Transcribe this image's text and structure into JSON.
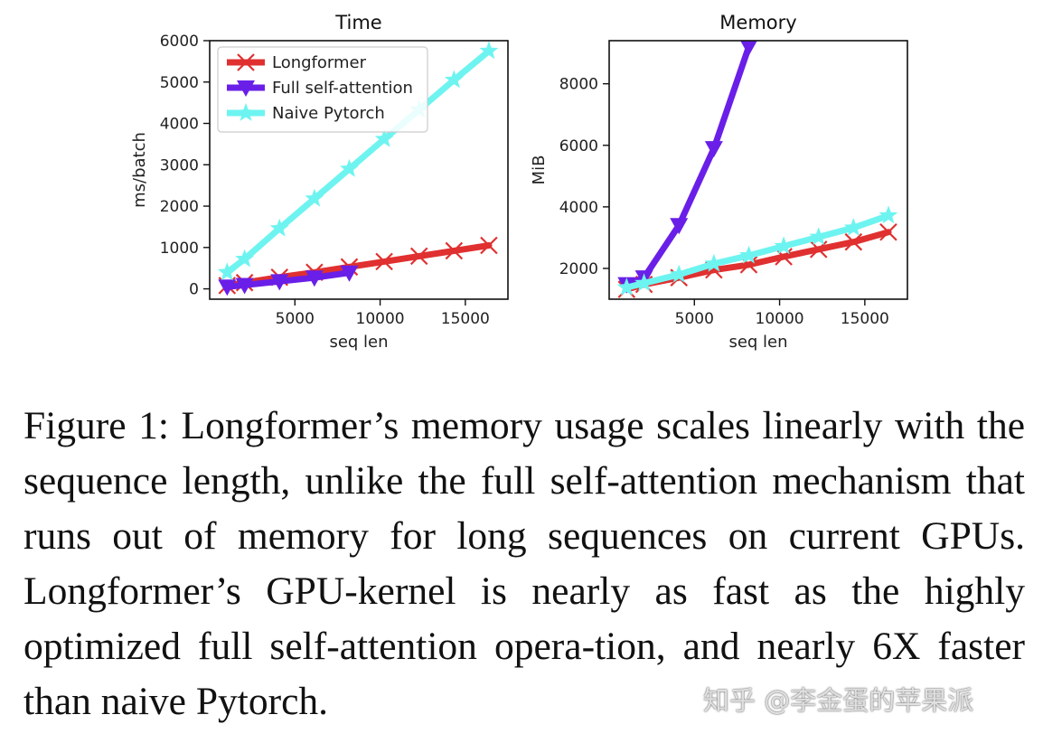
{
  "chart_data": [
    {
      "type": "line",
      "title": "Time",
      "xlabel": "seq len",
      "ylabel": "ms/batch",
      "xlim": [
        0,
        17500
      ],
      "ylim": [
        -250,
        6000
      ],
      "xticks": [
        5000,
        10000,
        15000
      ],
      "yticks": [
        0,
        1000,
        2000,
        3000,
        4000,
        5000,
        6000
      ],
      "legend": "top-left",
      "series": [
        {
          "name": "Longformer",
          "color": "#e03030",
          "marker": "x",
          "x": [
            1024,
            2048,
            4096,
            6144,
            8192,
            10240,
            12288,
            14336,
            16384
          ],
          "y": [
            80,
            150,
            280,
            400,
            530,
            660,
            790,
            920,
            1050
          ]
        },
        {
          "name": "Full self-attention",
          "color": "#6a1fe8",
          "marker": "triangle-down",
          "x": [
            1024,
            2048,
            4096,
            6144,
            8192
          ],
          "y": [
            50,
            90,
            180,
            270,
            390
          ]
        },
        {
          "name": "Naive Pytorch",
          "color": "#6ef4f0",
          "marker": "star",
          "x": [
            1024,
            2048,
            4096,
            6144,
            8192,
            10240,
            12288,
            14336,
            16384
          ],
          "y": [
            400,
            720,
            1460,
            2180,
            2900,
            3620,
            4330,
            5050,
            5750
          ]
        }
      ]
    },
    {
      "type": "line",
      "title": "Memory",
      "xlabel": "seq len",
      "ylabel": "MiB",
      "xlim": [
        0,
        17500
      ],
      "ylim": [
        1000,
        9400
      ],
      "xticks": [
        5000,
        10000,
        15000
      ],
      "yticks": [
        2000,
        4000,
        6000,
        8000
      ],
      "series": [
        {
          "name": "Longformer",
          "color": "#e03030",
          "marker": "x",
          "x": [
            1024,
            2048,
            4096,
            6144,
            8192,
            10240,
            12288,
            14336,
            16384
          ],
          "y": [
            1320,
            1480,
            1700,
            1950,
            2120,
            2380,
            2620,
            2860,
            3180
          ]
        },
        {
          "name": "Full self-attention",
          "color": "#6a1fe8",
          "marker": "triangle-down",
          "x": [
            1024,
            2048,
            4096,
            6144,
            8192
          ],
          "y": [
            1480,
            1700,
            3400,
            5900,
            9200
          ]
        },
        {
          "name": "Naive Pytorch",
          "color": "#6ef4f0",
          "marker": "star",
          "x": [
            1024,
            2048,
            4096,
            6144,
            8192,
            10240,
            12288,
            14336,
            16384
          ],
          "y": [
            1380,
            1520,
            1800,
            2150,
            2420,
            2720,
            3020,
            3320,
            3720
          ]
        }
      ]
    }
  ],
  "caption": "Figure 1: Longformer’s memory usage scales linearly with the sequence length, unlike the full self-attention mechanism that runs out of memory for long sequences on current GPUs. Longformer’s GPU-kernel is nearly as fast as the highly optimized full self-attention opera-tion, and nearly 6X faster than naive Pytorch.",
  "watermark": "知乎 @李金蛋的苹果派"
}
